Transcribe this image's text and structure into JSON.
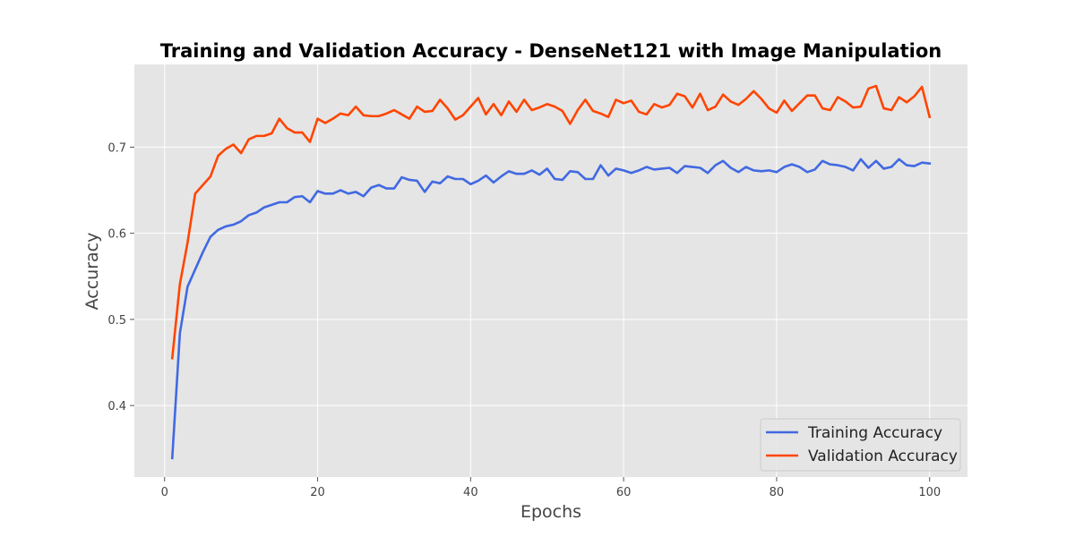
{
  "chart_data": {
    "type": "line",
    "title": "Training and Validation Accuracy - DenseNet121 with Image Manipulation",
    "xlabel": "Epochs",
    "ylabel": "Accuracy",
    "xlim": [
      -3.95,
      104.95
    ],
    "ylim": [
      0.317,
      0.796
    ],
    "xticks": [
      0,
      20,
      40,
      60,
      80,
      100
    ],
    "yticks": [
      0.4,
      0.5,
      0.6,
      0.7
    ],
    "xtick_labels": [
      "0",
      "20",
      "40",
      "60",
      "80",
      "100"
    ],
    "ytick_labels": [
      "0.4",
      "0.5",
      "0.6",
      "0.7"
    ],
    "grid": true,
    "legend_position": "lower-right",
    "background_color": "#e5e5e5",
    "grid_color": "#ffffff",
    "series": [
      {
        "name": "Training Accuracy",
        "color": "#4169e1",
        "x": [
          1,
          2,
          3,
          4,
          5,
          6,
          7,
          8,
          9,
          10,
          11,
          12,
          13,
          14,
          15,
          16,
          17,
          18,
          19,
          20,
          21,
          22,
          23,
          24,
          25,
          26,
          27,
          28,
          29,
          30,
          31,
          32,
          33,
          34,
          35,
          36,
          37,
          38,
          39,
          40,
          41,
          42,
          43,
          44,
          45,
          46,
          47,
          48,
          49,
          50,
          51,
          52,
          53,
          54,
          55,
          56,
          57,
          58,
          59,
          60,
          61,
          62,
          63,
          64,
          65,
          66,
          67,
          68,
          69,
          70,
          71,
          72,
          73,
          74,
          75,
          76,
          77,
          78,
          79,
          80,
          81,
          82,
          83,
          84,
          85,
          86,
          87,
          88,
          89,
          90,
          91,
          92,
          93,
          94,
          95,
          96,
          97,
          98,
          99,
          100
        ],
        "values": [
          0.339,
          0.484,
          0.538,
          0.558,
          0.578,
          0.596,
          0.604,
          0.608,
          0.61,
          0.614,
          0.621,
          0.624,
          0.63,
          0.633,
          0.636,
          0.636,
          0.642,
          0.643,
          0.636,
          0.649,
          0.646,
          0.646,
          0.65,
          0.646,
          0.648,
          0.643,
          0.653,
          0.656,
          0.652,
          0.652,
          0.665,
          0.662,
          0.661,
          0.648,
          0.66,
          0.658,
          0.666,
          0.663,
          0.663,
          0.657,
          0.661,
          0.667,
          0.659,
          0.666,
          0.672,
          0.669,
          0.669,
          0.673,
          0.668,
          0.675,
          0.663,
          0.662,
          0.672,
          0.671,
          0.663,
          0.663,
          0.679,
          0.667,
          0.675,
          0.673,
          0.67,
          0.673,
          0.677,
          0.674,
          0.675,
          0.676,
          0.67,
          0.678,
          0.677,
          0.676,
          0.67,
          0.679,
          0.684,
          0.676,
          0.671,
          0.677,
          0.673,
          0.672,
          0.673,
          0.671,
          0.677,
          0.68,
          0.677,
          0.671,
          0.674,
          0.684,
          0.68,
          0.679,
          0.677,
          0.673,
          0.686,
          0.676,
          0.684,
          0.675,
          0.677,
          0.686,
          0.679,
          0.678,
          0.682,
          0.681
        ]
      },
      {
        "name": "Validation Accuracy",
        "color": "#ff4500",
        "x": [
          1,
          2,
          3,
          4,
          5,
          6,
          7,
          8,
          9,
          10,
          11,
          12,
          13,
          14,
          15,
          16,
          17,
          18,
          19,
          20,
          21,
          22,
          23,
          24,
          25,
          26,
          27,
          28,
          29,
          30,
          31,
          32,
          33,
          34,
          35,
          36,
          37,
          38,
          39,
          40,
          41,
          42,
          43,
          44,
          45,
          46,
          47,
          48,
          49,
          50,
          51,
          52,
          53,
          54,
          55,
          56,
          57,
          58,
          59,
          60,
          61,
          62,
          63,
          64,
          65,
          66,
          67,
          68,
          69,
          70,
          71,
          72,
          73,
          74,
          75,
          76,
          77,
          78,
          79,
          80,
          81,
          82,
          83,
          84,
          85,
          86,
          87,
          88,
          89,
          90,
          91,
          92,
          93,
          94,
          95,
          96,
          97,
          98,
          99,
          100
        ],
        "values": [
          0.455,
          0.541,
          0.589,
          0.646,
          0.656,
          0.666,
          0.69,
          0.698,
          0.703,
          0.693,
          0.709,
          0.713,
          0.713,
          0.716,
          0.733,
          0.722,
          0.717,
          0.717,
          0.706,
          0.733,
          0.728,
          0.733,
          0.739,
          0.737,
          0.747,
          0.737,
          0.736,
          0.736,
          0.739,
          0.743,
          0.738,
          0.733,
          0.747,
          0.741,
          0.742,
          0.755,
          0.745,
          0.732,
          0.737,
          0.747,
          0.757,
          0.738,
          0.75,
          0.737,
          0.753,
          0.741,
          0.755,
          0.743,
          0.746,
          0.75,
          0.747,
          0.742,
          0.727,
          0.743,
          0.755,
          0.742,
          0.739,
          0.735,
          0.755,
          0.751,
          0.754,
          0.741,
          0.738,
          0.75,
          0.746,
          0.749,
          0.762,
          0.759,
          0.746,
          0.762,
          0.743,
          0.747,
          0.761,
          0.753,
          0.749,
          0.756,
          0.765,
          0.756,
          0.745,
          0.74,
          0.754,
          0.742,
          0.751,
          0.76,
          0.76,
          0.745,
          0.743,
          0.758,
          0.753,
          0.746,
          0.747,
          0.768,
          0.771,
          0.745,
          0.743,
          0.758,
          0.752,
          0.759,
          0.77,
          0.735
        ]
      }
    ]
  }
}
